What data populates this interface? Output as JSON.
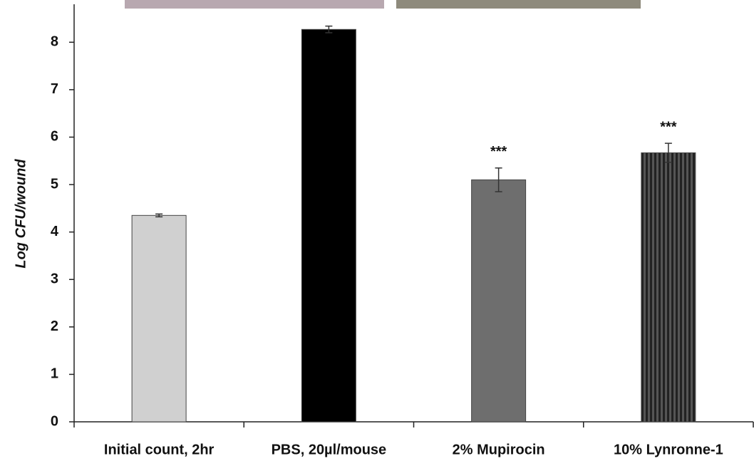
{
  "chart_data": {
    "type": "bar",
    "y_label": "Log CFU/wound",
    "categories": [
      "Initial count, 2hr",
      "PBS, 20µl/mouse",
      "2% Mupirocin",
      "10% Lynronne-1"
    ],
    "values": [
      4.35,
      8.27,
      5.1,
      5.67
    ],
    "errors": [
      0.03,
      0.07,
      0.25,
      0.2
    ],
    "colors": [
      "#d0d0d0",
      "#000000",
      "#6e6e6e",
      "#3a3a3a"
    ],
    "striped": [
      false,
      false,
      false,
      true
    ],
    "significance": [
      null,
      null,
      "***",
      "***"
    ],
    "ylim": [
      0,
      8.8
    ],
    "yticks": [
      0,
      1,
      2,
      3,
      4,
      5,
      6,
      7,
      8
    ],
    "grid": false
  }
}
